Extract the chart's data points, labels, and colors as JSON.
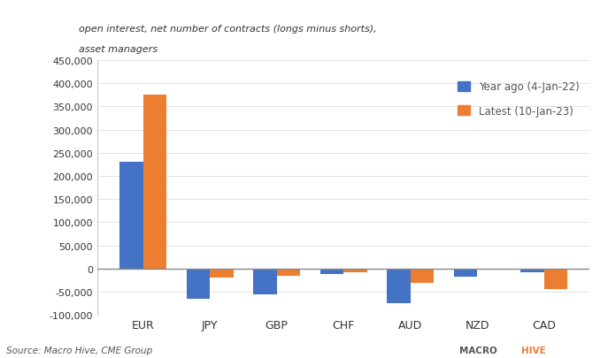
{
  "categories": [
    "EUR",
    "JPY",
    "GBP",
    "CHF",
    "AUD",
    "NZD",
    "CAD"
  ],
  "year_ago": [
    230000,
    -65000,
    -55000,
    -12000,
    -75000,
    -18000,
    -8000
  ],
  "latest": [
    375000,
    -20000,
    -15000,
    -8000,
    -30000,
    -3000,
    -45000
  ],
  "color_year_ago": "#4472C4",
  "color_latest": "#ED7D31",
  "ylim": [
    -100000,
    450000
  ],
  "yticks": [
    -100000,
    -50000,
    0,
    50000,
    100000,
    150000,
    200000,
    250000,
    300000,
    350000,
    400000,
    450000
  ],
  "subtitle_line1": "open interest, net number of contracts (longs minus shorts),",
  "subtitle_line2": "asset managers",
  "legend_year_ago": "Year ago (4-Jan-22)",
  "legend_latest": "Latest (10-Jan-23)",
  "source_text": "Source: Macro Hive, CME Group",
  "bar_width": 0.35,
  "background_color": "#ffffff"
}
